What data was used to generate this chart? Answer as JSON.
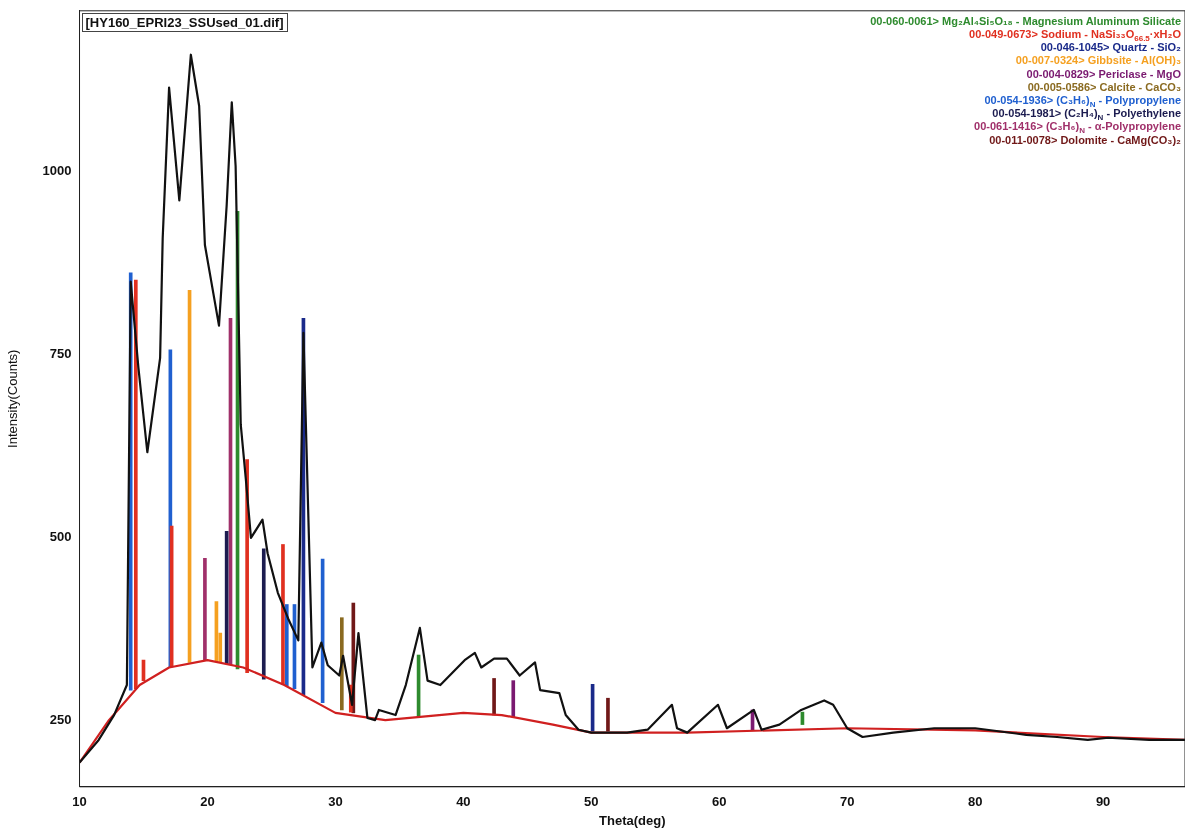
{
  "chart_data": {
    "type": "bar",
    "title": "[HY160_EPRI23_SSUsed_01.dif]",
    "xlabel": "Theta(deg)",
    "ylabel": "Intensity(Counts)",
    "xlim": [
      10,
      96.4
    ],
    "xticks": [
      10,
      20,
      30,
      40,
      50,
      60,
      70,
      80,
      90
    ],
    "ylim": [
      160,
      1220
    ],
    "yticks": [
      250,
      500,
      750,
      1000
    ],
    "grid": false,
    "legend": "top right",
    "series": [
      {
        "type": "line",
        "color": "#111111",
        "x": [
          10.0,
          11.5,
          12.7,
          13.7,
          14.0,
          14.6,
          15.3,
          16.3,
          16.5,
          17.0,
          17.8,
          18.7,
          19.35,
          19.8,
          20.9,
          21.5,
          21.9,
          22.2,
          22.6,
          23.0,
          23.4,
          24.3,
          24.7,
          25.5,
          26.3,
          27.1,
          27.5,
          28.2,
          28.9,
          29.4,
          30.3,
          30.6,
          31.3,
          31.8,
          32.5,
          33.1,
          33.4,
          34.7,
          35.5,
          36.6,
          37.2,
          38.2,
          40.1,
          40.9,
          41.4,
          42.4,
          43.4,
          44.4,
          45.6,
          46.0,
          47.5,
          48.0,
          49.0,
          50.0,
          51.2,
          52.8,
          54.4,
          56.3,
          56.7,
          57.5,
          59.9,
          60.6,
          62.7,
          63.3,
          64.7,
          66.4,
          68.2,
          68.9,
          70.0,
          71.2,
          73.6,
          76.8,
          80.0,
          84.0,
          86.4,
          88.8,
          90.4,
          93.6,
          96.4
        ],
        "values": [
          193,
          224,
          258,
          299,
          850,
          733,
          617,
          746,
          909,
          1115,
          961,
          1160,
          1090,
          900,
          790,
          954,
          1095,
          1008,
          655,
          580,
          500,
          525,
          479,
          425,
          390,
          360,
          780,
          323,
          357,
          326,
          312,
          339,
          272,
          370,
          254,
          251,
          265,
          258,
          299,
          377,
          305,
          299,
          333,
          343,
          323,
          335,
          335,
          312,
          330,
          292,
          288,
          258,
          238,
          234,
          234,
          234,
          238,
          272,
          240,
          234,
          272,
          240,
          265,
          238,
          245,
          265,
          278,
          272,
          240,
          228,
          234,
          240,
          240,
          231,
          228,
          224,
          227,
          224,
          224
        ]
      },
      {
        "type": "line",
        "color": "#d02020",
        "x": [
          10,
          12.3,
          14.7,
          17,
          20,
          22.8,
          26,
          30,
          33.9,
          40,
          43,
          47,
          50,
          57.5,
          70,
          80,
          90,
          96.4
        ],
        "values": [
          193,
          251,
          299,
          323,
          333,
          323,
          299,
          261,
          251,
          261,
          258,
          245,
          234,
          234,
          240,
          237,
          228,
          224
        ]
      },
      {
        "name": "00-060-0061> Mg₂Al₄Si₅O₁₈ - Magnesium Aluminum Silicate",
        "color": "#2e8b2e",
        "x": [
          22.35,
          36.5,
          66.5
        ],
        "base": [
          321,
          256,
          245
        ],
        "values": [
          625,
          84,
          17
        ]
      },
      {
        "name": "00-049-0673> Sodium - NaSi₃₃O$_{66.5}$·xH₂O",
        "color": "#e03020",
        "x": [
          14.4,
          15.0,
          17.2,
          23.1,
          25.9,
          31.2
        ],
        "base": [
          294,
          305,
          324,
          316,
          300,
          262
        ],
        "values": [
          558,
          28,
          192,
          291,
          191,
          37
        ]
      },
      {
        "name": "00-046-1045> Quartz - SiO₂",
        "color": "#1a2a8a",
        "x": [
          27.5,
          50.1
        ],
        "base": [
          286,
          236
        ],
        "values": [
          514,
          64
        ]
      },
      {
        "name": "00-007-0324> Gibbsite - Al(OH)₃",
        "color": "#f5a020",
        "x": [
          18.6,
          20.7,
          21.0
        ],
        "base": [
          330,
          331,
          330
        ],
        "values": [
          508,
          82,
          40
        ]
      },
      {
        "name": "00-004-0829> Periclase - MgO",
        "color": "#7a1a70",
        "x": [
          43.9,
          62.6
        ],
        "base": [
          255,
          237
        ],
        "values": [
          50,
          28
        ]
      },
      {
        "name": "00-005-0586> Calcite - CaCO₃",
        "color": "#8a6a20",
        "x": [
          30.5
        ],
        "base": [
          265
        ],
        "values": [
          126
        ]
      },
      {
        "name": "00-054-1936> (C₃H₆)$_{N}$ - Polypropylene",
        "color": "#2060d0",
        "x": [
          14.0,
          17.1,
          26.2,
          26.8,
          29.0
        ],
        "base": [
          292,
          323,
          298,
          294,
          275
        ],
        "values": [
          570,
          434,
          111,
          115,
          196
        ]
      },
      {
        "name": "00-054-1981> (C₂H₄)$_{N}$ - Polyethylene",
        "color": "#1c1c50",
        "x": [
          21.5,
          24.4
        ],
        "base": [
          328,
          307
        ],
        "values": [
          181,
          178
        ]
      },
      {
        "name": "00-061-1416> (C₃H₆)$_{N}$ - α-Polypropylene",
        "color": "#a0306a",
        "x": [
          19.8,
          21.8
        ],
        "base": [
          333,
          327
        ],
        "values": [
          139,
          473
        ]
      },
      {
        "name": "00-011-0078> Dolomite - CaMg(CO₃)₂",
        "color": "#701818",
        "x": [
          31.4,
          42.4,
          51.3
        ],
        "base": [
          261,
          258,
          236
        ],
        "values": [
          150,
          50,
          45
        ]
      }
    ]
  }
}
